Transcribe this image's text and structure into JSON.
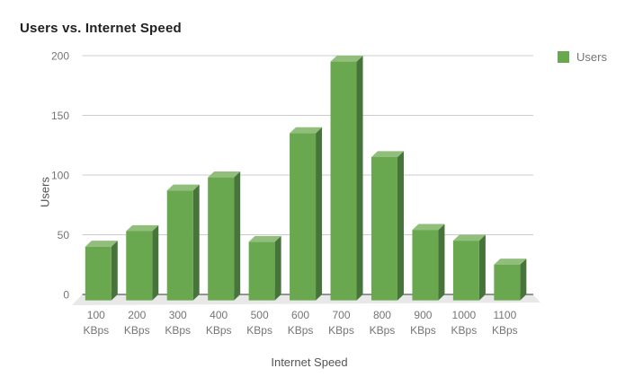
{
  "page": {
    "background": "#ffffff"
  },
  "legend": {
    "position": "right"
  },
  "chart_data": {
    "type": "bar",
    "variant": "3d-column",
    "title": "Users vs. Internet Speed",
    "xlabel": "Internet Speed",
    "ylabel": "Users",
    "categories": [
      "100 KBps",
      "200 KBps",
      "300 KBps",
      "400 KBps",
      "500 KBps",
      "600 KBps",
      "700 KBps",
      "800 KBps",
      "900 KBps",
      "1000 KBps",
      "1100 KBps"
    ],
    "series": [
      {
        "name": "Users",
        "values": [
          45,
          58,
          92,
          103,
          49,
          140,
          200,
          120,
          59,
          50,
          30
        ]
      }
    ],
    "ylim": [
      0,
      200
    ],
    "yticks": [
      0,
      50,
      100,
      150,
      200
    ],
    "grid": true,
    "legend_position": "right",
    "colors": {
      "bar_front": "#6aa84f",
      "bar_top": "#91be7b",
      "bar_side": "#47743a",
      "grid": "#cccccc",
      "baseline": "#333333",
      "floor": "#e8e8e8",
      "tick_text": "#757575",
      "axis_title_text": "#545454",
      "title_text": "#212121",
      "legend_text": "#757575",
      "background": "#ffffff"
    }
  }
}
